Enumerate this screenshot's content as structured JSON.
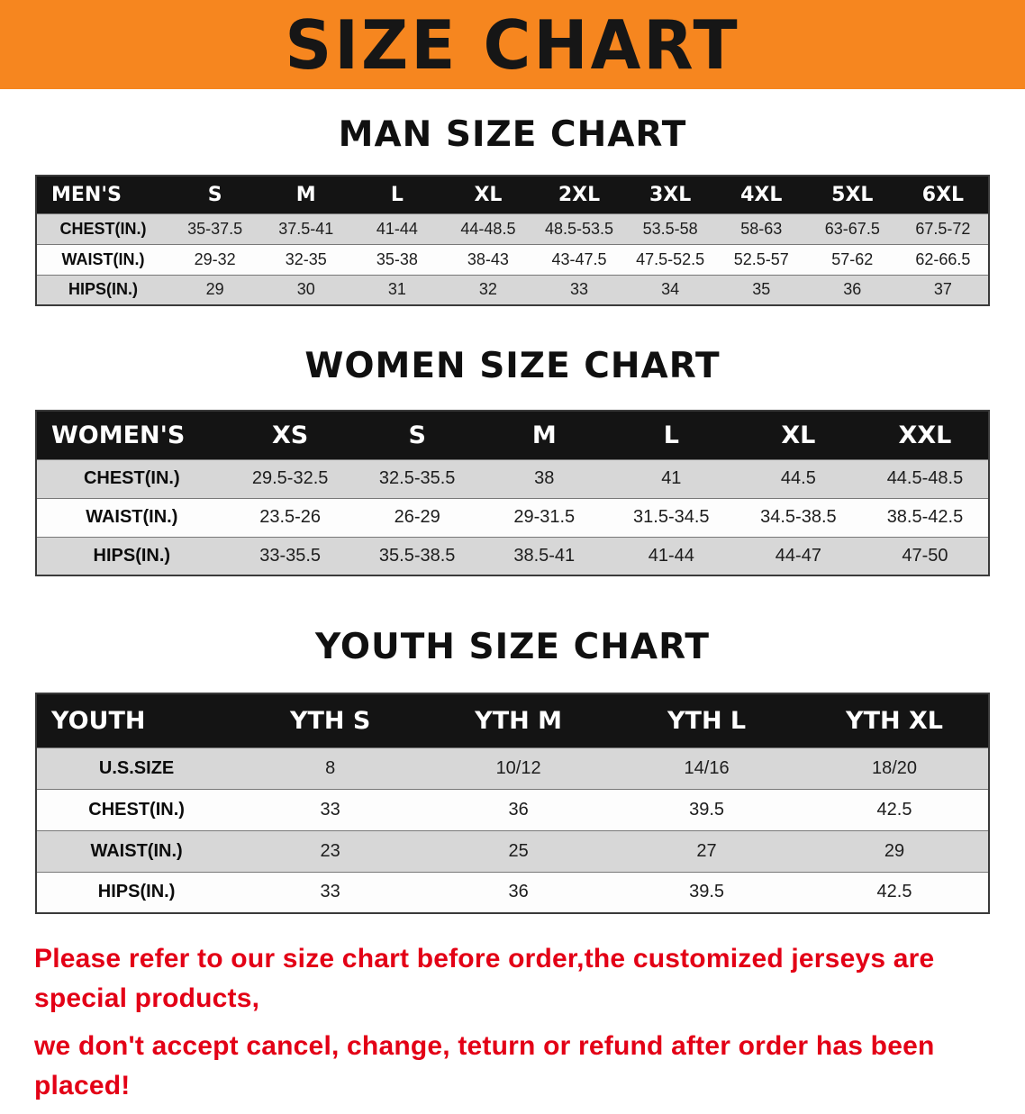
{
  "banner": {
    "title": "SIZE CHART",
    "bg_color": "#f6861f"
  },
  "sections": [
    {
      "heading": "MAN SIZE CHART",
      "table": {
        "header": [
          "MEN'S",
          "S",
          "M",
          "L",
          "XL",
          "2XL",
          "3XL",
          "4XL",
          "5XL",
          "6XL"
        ],
        "rows": [
          {
            "label": "CHEST(IN.)",
            "values": [
              "35-37.5",
              "37.5-41",
              "41-44",
              "44-48.5",
              "48.5-53.5",
              "53.5-58",
              "58-63",
              "63-67.5",
              "67.5-72"
            ]
          },
          {
            "label": "WAIST(IN.)",
            "values": [
              "29-32",
              "32-35",
              "35-38",
              "38-43",
              "43-47.5",
              "47.5-52.5",
              "52.5-57",
              "57-62",
              "62-66.5"
            ]
          },
          {
            "label": "HIPS(IN.)",
            "values": [
              "29",
              "30",
              "31",
              "32",
              "33",
              "34",
              "35",
              "36",
              "37"
            ]
          }
        ]
      }
    },
    {
      "heading": "WOMEN SIZE CHART",
      "table": {
        "header": [
          "WOMEN'S",
          "XS",
          "S",
          "M",
          "L",
          "XL",
          "XXL"
        ],
        "rows": [
          {
            "label": "CHEST(IN.)",
            "values": [
              "29.5-32.5",
              "32.5-35.5",
              "38",
              "41",
              "44.5",
              "44.5-48.5"
            ]
          },
          {
            "label": "WAIST(IN.)",
            "values": [
              "23.5-26",
              "26-29",
              "29-31.5",
              "31.5-34.5",
              "34.5-38.5",
              "38.5-42.5"
            ]
          },
          {
            "label": "HIPS(IN.)",
            "values": [
              "33-35.5",
              "35.5-38.5",
              "38.5-41",
              "41-44",
              "44-47",
              "47-50"
            ]
          }
        ]
      }
    },
    {
      "heading": "YOUTH SIZE CHART",
      "table": {
        "header": [
          "YOUTH",
          "YTH S",
          "YTH M",
          "YTH L",
          "YTH XL"
        ],
        "rows": [
          {
            "label": "U.S.SIZE",
            "values": [
              "8",
              "10/12",
              "14/16",
              "18/20"
            ]
          },
          {
            "label": "CHEST(IN.)",
            "values": [
              "33",
              "36",
              "39.5",
              "42.5"
            ]
          },
          {
            "label": "WAIST(IN.)",
            "values": [
              "23",
              "25",
              "27",
              "29"
            ]
          },
          {
            "label": "HIPS(IN.)",
            "values": [
              "33",
              "36",
              "39.5",
              "42.5"
            ]
          }
        ]
      }
    }
  ],
  "disclaimer": {
    "line1": "Please refer to our size chart before order,the customized jerseys are special products,",
    "line2": "we don't accept cancel, change, teturn or refund after order has been placed!",
    "color": "#e30016"
  }
}
